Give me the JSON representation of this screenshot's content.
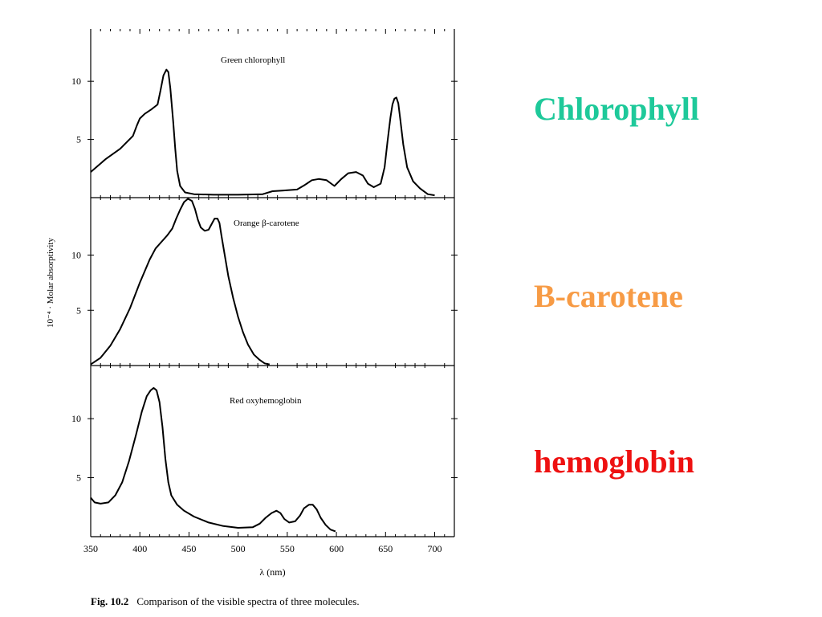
{
  "side_labels": [
    {
      "text": "Chlorophyll",
      "color": "#1ec99a"
    },
    {
      "text": "B-carotene",
      "color": "#f79b45"
    },
    {
      "text": "hemoglobin",
      "color": "#ee1111"
    }
  ],
  "caption": {
    "label": "Fig. 10.2",
    "text": "Comparison of the visible spectra of three molecules."
  },
  "chart_data": {
    "type": "line",
    "xlabel": "λ (nm)",
    "ylabel": "10⁻⁴ · Molar absorptivity",
    "xlim": [
      350,
      720
    ],
    "x_ticks": [
      350,
      400,
      450,
      500,
      550,
      600,
      650,
      700
    ],
    "y_ticks": [
      5,
      10
    ],
    "panels": [
      {
        "title": "Green chlorophyll",
        "ylim": [
          0,
          14.5
        ],
        "points": [
          [
            350,
            2.2
          ],
          [
            365,
            3.3
          ],
          [
            380,
            4.2
          ],
          [
            393,
            5.3
          ],
          [
            397,
            6.2
          ],
          [
            400,
            6.8
          ],
          [
            405,
            7.2
          ],
          [
            412,
            7.6
          ],
          [
            418,
            8.0
          ],
          [
            421,
            9.2
          ],
          [
            424,
            10.5
          ],
          [
            427,
            11.0
          ],
          [
            429,
            10.8
          ],
          [
            431,
            9.4
          ],
          [
            434,
            6.5
          ],
          [
            436,
            4.2
          ],
          [
            438,
            2.3
          ],
          [
            441,
            1.0
          ],
          [
            446,
            0.45
          ],
          [
            455,
            0.3
          ],
          [
            475,
            0.25
          ],
          [
            500,
            0.25
          ],
          [
            525,
            0.3
          ],
          [
            535,
            0.55
          ],
          [
            545,
            0.6
          ],
          [
            560,
            0.7
          ],
          [
            568,
            1.1
          ],
          [
            575,
            1.5
          ],
          [
            582,
            1.6
          ],
          [
            590,
            1.5
          ],
          [
            598,
            1.0
          ],
          [
            605,
            1.6
          ],
          [
            612,
            2.1
          ],
          [
            620,
            2.2
          ],
          [
            627,
            1.9
          ],
          [
            632,
            1.2
          ],
          [
            638,
            0.9
          ],
          [
            645,
            1.2
          ],
          [
            649,
            2.6
          ],
          [
            652,
            4.8
          ],
          [
            655,
            6.9
          ],
          [
            657,
            8.0
          ],
          [
            659,
            8.5
          ],
          [
            661,
            8.6
          ],
          [
            663,
            8.1
          ],
          [
            665,
            6.7
          ],
          [
            668,
            4.6
          ],
          [
            672,
            2.6
          ],
          [
            678,
            1.4
          ],
          [
            685,
            0.8
          ],
          [
            693,
            0.3
          ],
          [
            700,
            0.2
          ]
        ]
      },
      {
        "title": "Orange β-carotene",
        "ylim": [
          0,
          15.2
        ],
        "points": [
          [
            350,
            0.1
          ],
          [
            360,
            0.7
          ],
          [
            370,
            1.8
          ],
          [
            380,
            3.3
          ],
          [
            390,
            5.2
          ],
          [
            400,
            7.5
          ],
          [
            410,
            9.6
          ],
          [
            416,
            10.6
          ],
          [
            422,
            11.2
          ],
          [
            428,
            11.8
          ],
          [
            433,
            12.4
          ],
          [
            437,
            13.3
          ],
          [
            441,
            14.1
          ],
          [
            445,
            14.8
          ],
          [
            449,
            15.1
          ],
          [
            453,
            14.9
          ],
          [
            456,
            14.2
          ],
          [
            459,
            13.2
          ],
          [
            462,
            12.5
          ],
          [
            466,
            12.2
          ],
          [
            470,
            12.3
          ],
          [
            473,
            12.8
          ],
          [
            476,
            13.3
          ],
          [
            479,
            13.3
          ],
          [
            481,
            12.9
          ],
          [
            483,
            11.8
          ],
          [
            486,
            10.2
          ],
          [
            490,
            8.1
          ],
          [
            495,
            6.1
          ],
          [
            500,
            4.4
          ],
          [
            505,
            3.0
          ],
          [
            510,
            1.9
          ],
          [
            516,
            1.0
          ],
          [
            522,
            0.5
          ],
          [
            527,
            0.2
          ],
          [
            532,
            0.1
          ]
        ]
      },
      {
        "title": "Red oxyhemoglobin",
        "ylim": [
          0,
          14.5
        ],
        "points": [
          [
            350,
            3.3
          ],
          [
            354,
            2.9
          ],
          [
            360,
            2.8
          ],
          [
            368,
            2.9
          ],
          [
            375,
            3.5
          ],
          [
            382,
            4.6
          ],
          [
            389,
            6.4
          ],
          [
            396,
            8.6
          ],
          [
            402,
            10.6
          ],
          [
            407,
            11.9
          ],
          [
            411,
            12.4
          ],
          [
            414,
            12.6
          ],
          [
            417,
            12.4
          ],
          [
            420,
            11.4
          ],
          [
            423,
            9.3
          ],
          [
            426,
            6.6
          ],
          [
            429,
            4.6
          ],
          [
            432,
            3.5
          ],
          [
            438,
            2.7
          ],
          [
            445,
            2.2
          ],
          [
            455,
            1.7
          ],
          [
            470,
            1.2
          ],
          [
            485,
            0.9
          ],
          [
            500,
            0.75
          ],
          [
            515,
            0.8
          ],
          [
            522,
            1.1
          ],
          [
            528,
            1.6
          ],
          [
            534,
            2.0
          ],
          [
            539,
            2.2
          ],
          [
            543,
            2.0
          ],
          [
            547,
            1.5
          ],
          [
            552,
            1.2
          ],
          [
            558,
            1.3
          ],
          [
            563,
            1.8
          ],
          [
            567,
            2.4
          ],
          [
            572,
            2.7
          ],
          [
            576,
            2.7
          ],
          [
            580,
            2.3
          ],
          [
            584,
            1.6
          ],
          [
            589,
            1.0
          ],
          [
            594,
            0.6
          ],
          [
            599,
            0.45
          ]
        ]
      }
    ]
  }
}
